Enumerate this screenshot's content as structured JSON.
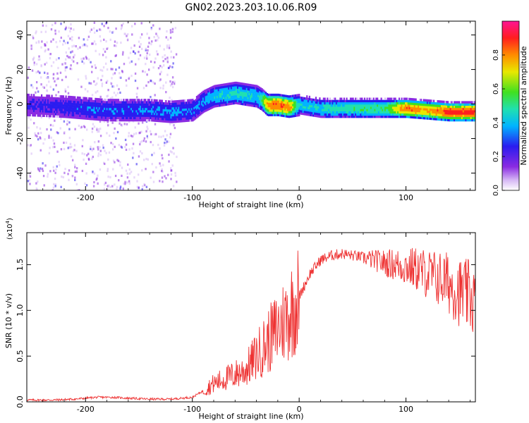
{
  "title": "GN02.2023.203.10.06.R09",
  "chart_data": [
    {
      "type": "heatmap",
      "xlabel": "Height of straight line (km)",
      "ylabel": "Frequency (Hz)",
      "xlim": [
        -255,
        165
      ],
      "ylim": [
        -50,
        48
      ],
      "x_ticks": [
        -200,
        -100,
        0,
        100
      ],
      "y_ticks": [
        -40,
        -20,
        0,
        20,
        40
      ],
      "colorbar": {
        "label": "Normalized spectral amplitude",
        "range": [
          0.0,
          1.0
        ],
        "ticks": [
          0.0,
          0.2,
          0.4,
          0.6,
          0.8
        ]
      },
      "ridge": {
        "height_km": [
          -255,
          -220,
          -200,
          -180,
          -160,
          -140,
          -120,
          -100,
          -90,
          -80,
          -70,
          -60,
          -50,
          -40,
          -35,
          -30,
          -20,
          -10,
          0,
          20,
          50,
          80,
          100,
          120,
          140,
          165
        ],
        "frequency_hz": [
          0,
          -1,
          -2,
          -3,
          -3,
          -3,
          -4,
          -3,
          2,
          5,
          6,
          7,
          6,
          5,
          3,
          0,
          0,
          -1,
          0,
          -2,
          -2,
          -2,
          -2,
          -3,
          -4,
          -4
        ],
        "amplitude": [
          0.2,
          0.25,
          0.3,
          0.3,
          0.3,
          0.3,
          0.35,
          0.3,
          0.35,
          0.4,
          0.45,
          0.45,
          0.45,
          0.4,
          0.55,
          0.8,
          0.85,
          0.8,
          0.4,
          0.45,
          0.5,
          0.55,
          0.85,
          0.75,
          0.9,
          0.9
        ]
      },
      "colors": {
        "scale": [
          "#8a2be2",
          "#3b1cf0",
          "#00b4ff",
          "#20e0a0",
          "#40e020",
          "#f0e000",
          "#ff8c00",
          "#ff1e1e",
          "#ff1493"
        ]
      }
    },
    {
      "type": "line",
      "xlabel": "Height of straight line (km)",
      "ylabel": "SNR (10 * v/v)",
      "multiplier_label": "(x10",
      "multiplier_exp": "4",
      "multiplier_close": ")",
      "xlim": [
        -255,
        165
      ],
      "ylim": [
        0.0,
        1.85
      ],
      "x_ticks": [
        -200,
        -100,
        0,
        100
      ],
      "y_ticks": [
        0.0,
        0.5,
        1.0,
        1.5
      ],
      "series": [
        {
          "x": [
            -255,
            -230,
            -210,
            -200,
            -190,
            -175,
            -160,
            -140,
            -120,
            -100,
            -90,
            -80,
            -70,
            -60,
            -50,
            -40,
            -30,
            -20,
            -10,
            0,
            10,
            20,
            30,
            40,
            50,
            60,
            70,
            80,
            90,
            100,
            110,
            120,
            130,
            140,
            150,
            160,
            165
          ],
          "y": [
            0.02,
            0.02,
            0.03,
            0.04,
            0.05,
            0.05,
            0.04,
            0.03,
            0.03,
            0.05,
            0.12,
            0.2,
            0.25,
            0.3,
            0.35,
            0.5,
            0.65,
            0.8,
            0.95,
            1.15,
            1.4,
            1.55,
            1.6,
            1.62,
            1.6,
            1.58,
            1.55,
            1.52,
            1.5,
            1.48,
            1.45,
            1.4,
            1.35,
            1.3,
            1.2,
            1.15,
            1.1
          ],
          "color": "#ee3333"
        }
      ]
    }
  ]
}
